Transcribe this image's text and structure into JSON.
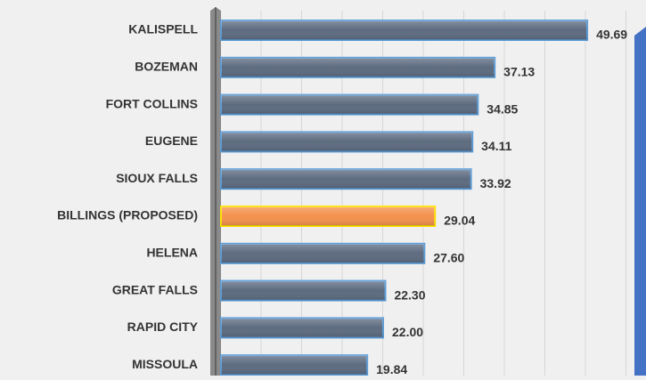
{
  "chart_data": {
    "type": "bar",
    "orientation": "horizontal",
    "categories": [
      "KALISPELL",
      "BOZEMAN",
      "FORT COLLINS",
      "EUGENE",
      "SIOUX FALLS",
      "BILLINGS (PROPOSED)",
      "HELENA",
      "GREAT FALLS",
      "RAPID CITY",
      "MISSOULA"
    ],
    "values": [
      49.69,
      37.13,
      34.85,
      34.11,
      33.92,
      29.04,
      27.6,
      22.3,
      22.0,
      19.84
    ],
    "value_labels": [
      "49.69",
      "37.13",
      "34.85",
      "34.11",
      "33.92",
      "29.04",
      "27.60",
      "22.30",
      "22.00",
      "19.84"
    ],
    "colors": [
      "#5d6b80",
      "#5d6b80",
      "#5d6b80",
      "#5d6b80",
      "#5d6b80",
      "#f4914d",
      "#5d6b80",
      "#5d6b80",
      "#5d6b80",
      "#5d6b80"
    ],
    "xlim": [
      0,
      55
    ],
    "grid": true
  }
}
